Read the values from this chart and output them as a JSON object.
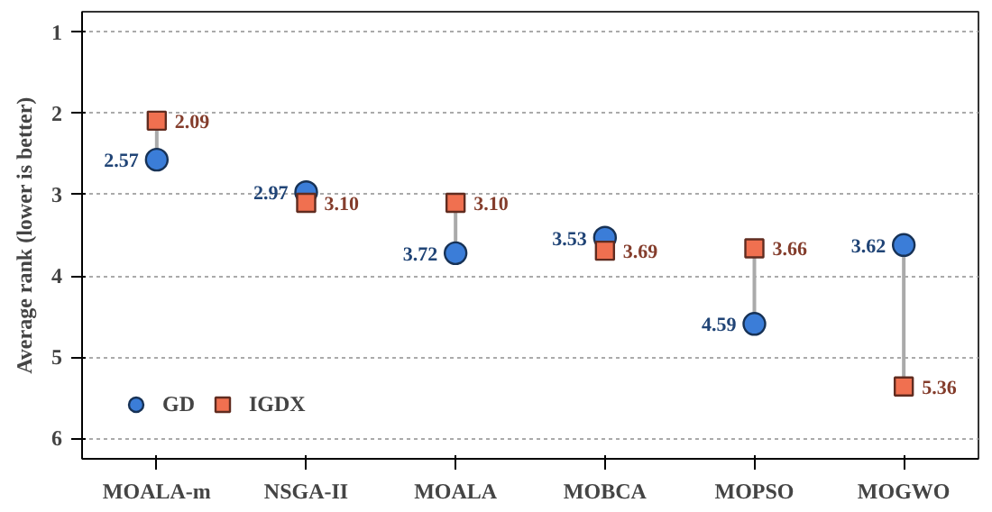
{
  "chart_data": {
    "type": "scatter",
    "ylabel": "Average rank (lower is better)",
    "categories": [
      "MOALA-m",
      "NSGA-II",
      "MOALA",
      "MOBCA",
      "MOPSO",
      "MOGWO"
    ],
    "series": [
      {
        "name": "GD",
        "color": "#3b7dd8",
        "marker": "circle",
        "values": [
          2.57,
          2.97,
          3.72,
          3.53,
          4.59,
          3.62
        ],
        "value_labels": [
          "2.57",
          "2.97",
          "3.72",
          "3.53",
          "4.59",
          "3.62"
        ]
      },
      {
        "name": "IGDX",
        "color": "#f07050",
        "marker": "square",
        "values": [
          2.09,
          3.1,
          3.1,
          3.69,
          3.66,
          5.36
        ],
        "value_labels": [
          "2.09",
          "3.10",
          "3.10",
          "3.69",
          "3.66",
          "5.36"
        ]
      }
    ],
    "ylim": [
      6.25,
      0.75
    ],
    "yticks": [
      1,
      2,
      3,
      4,
      5,
      6
    ],
    "grid": "y",
    "legend": "bottom left"
  }
}
